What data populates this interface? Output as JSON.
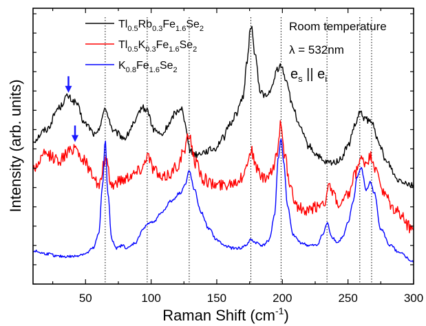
{
  "chart_data": {
    "type": "line",
    "title": "",
    "xlabel": "Raman Shift (cm",
    "xlabel_sup": "-1",
    "xlabel_close": ")",
    "ylabel": "Intensity (arb. units)",
    "xlim": [
      10,
      300
    ],
    "ylim": [
      0,
      100
    ],
    "x_ticks": [
      50,
      100,
      150,
      200,
      250,
      300
    ],
    "y_ticks_labeled": false,
    "grid": false,
    "legend_placement": "top-left",
    "annotations": {
      "line1": "Room temperature",
      "lambda_symbol": "λ",
      "lambda_value": " = 532nm",
      "polarization": {
        "a": "e",
        "a_sub": "s",
        "mid": " || ",
        "b": "e",
        "b_sub": "i"
      }
    },
    "peak_markers": [
      65,
      97,
      129,
      176,
      199,
      234,
      259,
      268
    ],
    "arrows": [
      {
        "x": 37,
        "series": "Tl0.5Rb0.3Fe1.6Se2",
        "color": "#1a1aff"
      },
      {
        "x": 42,
        "series": "Tl0.5K0.3Fe1.6Se2",
        "color": "#1a1aff"
      }
    ],
    "series": [
      {
        "name": "Tl0.5Rb0.3Fe1.6Se2",
        "legend_parts": [
          [
            "Tl",
            ""
          ],
          [
            "0.5",
            "sub"
          ],
          [
            "Rb",
            ""
          ],
          [
            "0.3",
            "sub"
          ],
          [
            "Fe",
            ""
          ],
          [
            "1.6",
            "sub"
          ],
          [
            "Se",
            ""
          ],
          [
            "2",
            "sub"
          ]
        ],
        "color": "#000000",
        "noise": 1.2,
        "x": [
          10,
          20,
          30,
          36,
          42,
          50,
          58,
          65,
          72,
          80,
          87,
          93,
          97,
          102,
          108,
          114,
          118,
          123,
          126,
          130,
          135,
          140,
          148,
          155,
          160,
          165,
          170,
          173,
          176,
          179,
          183,
          188,
          192,
          196,
          199,
          203,
          208,
          214,
          220,
          226,
          232,
          238,
          244,
          250,
          255,
          259,
          263,
          266,
          269,
          274,
          280,
          288,
          300
        ],
        "y": [
          52,
          56,
          64,
          68,
          66,
          58,
          54,
          63,
          55,
          53,
          58,
          64,
          63,
          56,
          54,
          58,
          62,
          64,
          58,
          48,
          47,
          48,
          49,
          53,
          58,
          62,
          68,
          80,
          94,
          84,
          70,
          68,
          71,
          78,
          79,
          74,
          64,
          56,
          50,
          47,
          44,
          44,
          45,
          50,
          57,
          62,
          60,
          59,
          58,
          50,
          44,
          38,
          36
        ]
      },
      {
        "name": "Tl0.5K0.3Fe1.6Se2",
        "legend_parts": [
          [
            "Tl",
            ""
          ],
          [
            "0.5",
            "sub"
          ],
          [
            "K",
            ""
          ],
          [
            "0.3",
            "sub"
          ],
          [
            "Fe",
            ""
          ],
          [
            "1.6",
            "sub"
          ],
          [
            "Se",
            ""
          ],
          [
            "2",
            "sub"
          ]
        ],
        "color": "#ff0000",
        "noise": 2.2,
        "x": [
          10,
          20,
          30,
          38,
          42,
          48,
          56,
          60,
          65,
          70,
          78,
          86,
          93,
          97,
          102,
          108,
          114,
          120,
          125,
          129,
          134,
          140,
          148,
          155,
          162,
          168,
          172,
          176,
          180,
          186,
          192,
          196,
          199,
          202,
          206,
          212,
          218,
          226,
          232,
          235,
          238,
          244,
          250,
          256,
          259,
          263,
          268,
          272,
          278,
          285,
          300
        ],
        "y": [
          42,
          47,
          45,
          48,
          50,
          45,
          40,
          35,
          45,
          36,
          38,
          40,
          42,
          47,
          42,
          38,
          40,
          43,
          48,
          54,
          44,
          38,
          36,
          36,
          37,
          38,
          42,
          49,
          42,
          38,
          40,
          48,
          59,
          46,
          34,
          28,
          26,
          28,
          30,
          35,
          33,
          28,
          32,
          40,
          45,
          44,
          46,
          40,
          32,
          27,
          20
        ]
      },
      {
        "name": "K0.8Fe1.6Se2",
        "legend_parts": [
          [
            "K",
            ""
          ],
          [
            "0.8",
            "sub"
          ],
          [
            "Fe",
            ""
          ],
          [
            "1.6",
            "sub"
          ],
          [
            "Se",
            ""
          ],
          [
            "2",
            "sub"
          ]
        ],
        "color": "#0000ff",
        "noise": 0.5,
        "x": [
          10,
          20,
          30,
          40,
          50,
          56,
          60,
          63,
          65,
          67,
          70,
          74,
          78,
          82,
          88,
          94,
          98,
          103,
          108,
          115,
          122,
          126,
          129,
          133,
          138,
          144,
          150,
          156,
          162,
          168,
          172,
          176,
          180,
          185,
          190,
          194,
          197,
          199,
          201,
          204,
          208,
          214,
          220,
          226,
          231,
          234,
          238,
          242,
          246,
          250,
          254,
          257,
          260,
          264,
          267,
          270,
          275,
          282,
          290,
          300
        ],
        "y": [
          12,
          11,
          10,
          10,
          11,
          13,
          18,
          36,
          52,
          33,
          16,
          13,
          14,
          13,
          15,
          20,
          22,
          23,
          26,
          30,
          33,
          36,
          41,
          34,
          26,
          20,
          16,
          14,
          13,
          13,
          14,
          16,
          15,
          14,
          16,
          25,
          46,
          53,
          44,
          28,
          18,
          15,
          14,
          14,
          18,
          22,
          17,
          15,
          17,
          22,
          30,
          39,
          42,
          34,
          37,
          33,
          20,
          14,
          11,
          8
        ]
      }
    ]
  }
}
